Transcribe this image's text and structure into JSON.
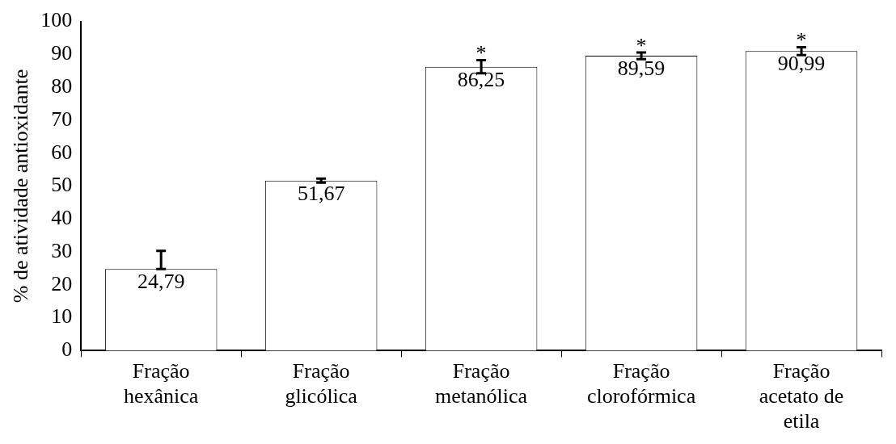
{
  "chart_data": {
    "type": "bar",
    "ylabel": "% de atividade antioxidante",
    "categories": [
      "Fração hexânica",
      "Fração glicólica",
      "Fração metanólica",
      "Fração clorofórmica",
      "Fração acetato de etila"
    ],
    "values": [
      24.79,
      51.67,
      86.25,
      89.59,
      90.99
    ],
    "value_labels": [
      "24,79",
      "51,67",
      "86,25",
      "89,59",
      "90,99"
    ],
    "errors": [
      [
        24.79,
        30.3
      ],
      0.6,
      2,
      1,
      1.2
    ],
    "color": "#ffffff",
    "ylim": [
      0,
      100
    ],
    "yticks": [
      0,
      10,
      20,
      30,
      40,
      50,
      60,
      70,
      80,
      90,
      100
    ],
    "grid": false,
    "legend": false,
    "annotations": [
      {
        "text": "*",
        "x": "Fração metanólica",
        "y": 88.25
      },
      {
        "text": "*",
        "x": "Fração clorofórmica",
        "y": 90.59
      },
      {
        "text": "*",
        "x": "Fração acetato de etila",
        "y": 92.19
      }
    ]
  }
}
